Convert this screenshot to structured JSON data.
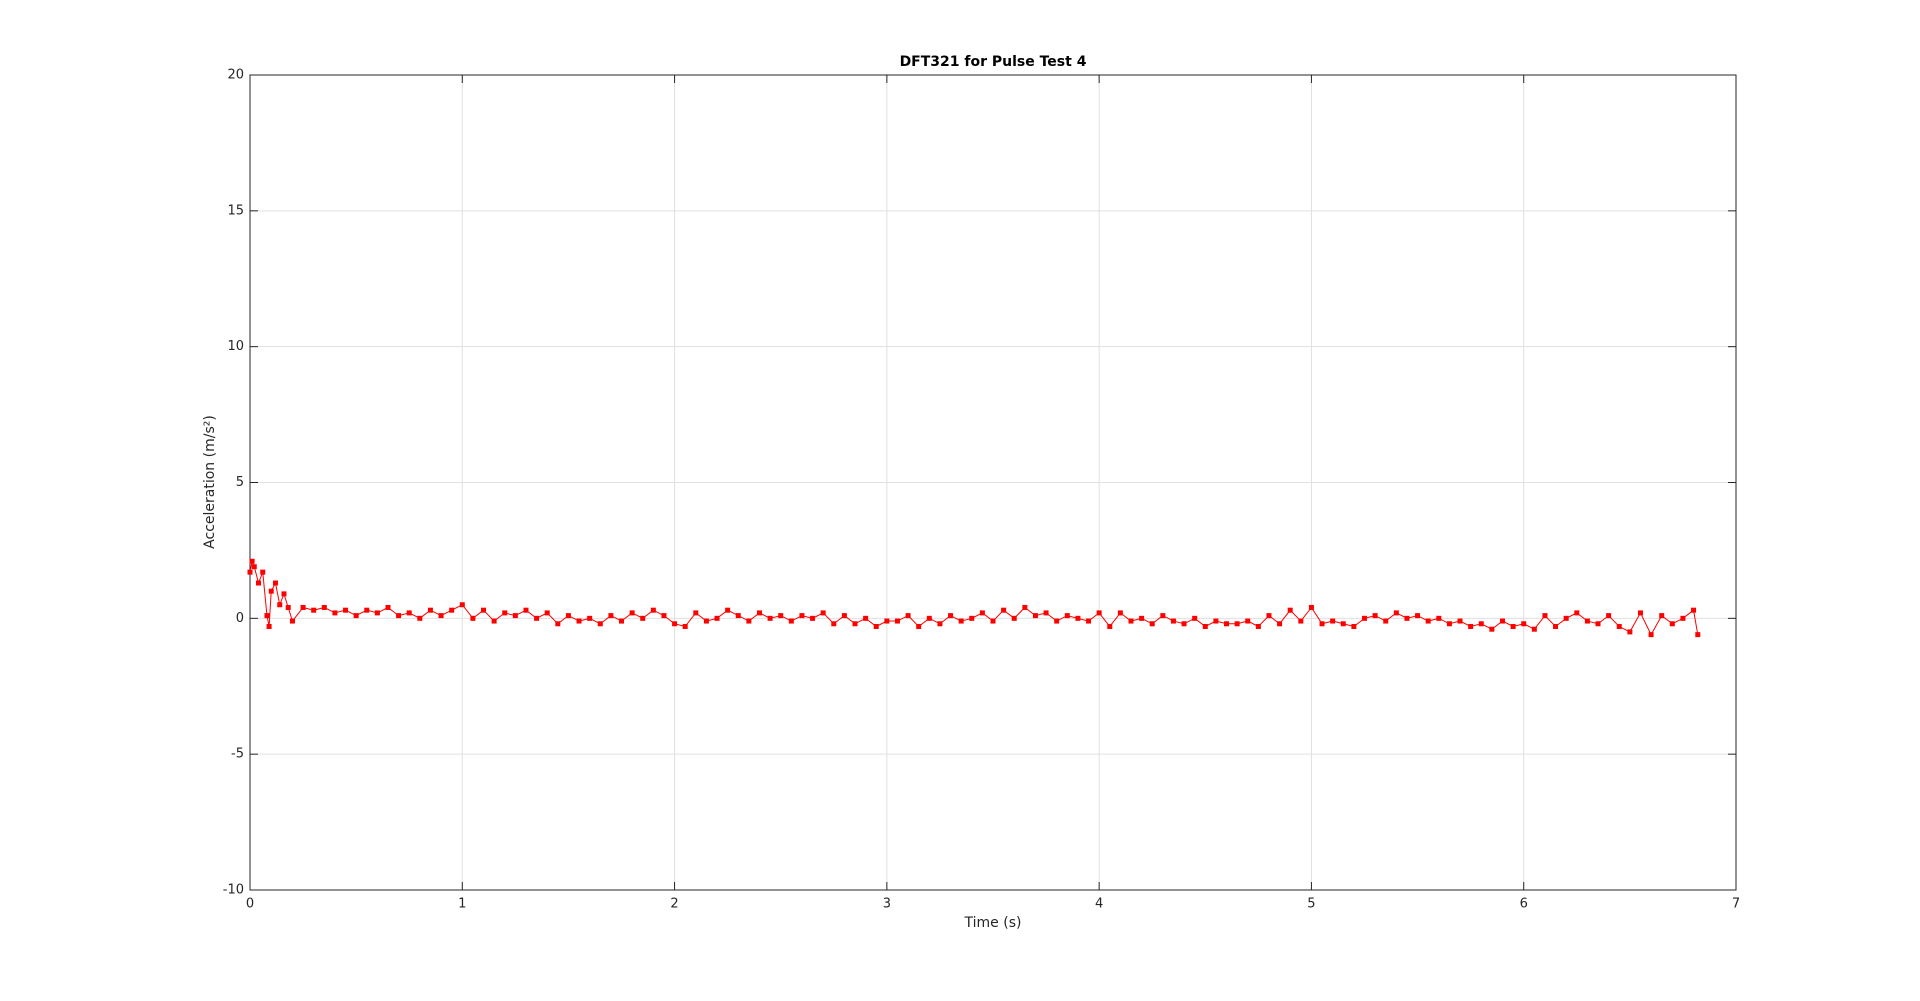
{
  "chart_data": {
    "type": "line",
    "title": "DFT321 for Pulse Test 4",
    "x_label": "Time (s)",
    "y_label": "Acceleration (m/s²)",
    "xlim": [
      0,
      7
    ],
    "ylim": [
      -10,
      20
    ],
    "xticks": [
      0,
      1,
      2,
      3,
      4,
      5,
      6,
      7
    ],
    "yticks": [
      -10,
      -5,
      0,
      5,
      10,
      15,
      20
    ],
    "grid": true,
    "x": [
      0,
      0.01,
      0.02,
      0.04,
      0.06,
      0.08,
      0.09,
      0.1,
      0.12,
      0.14,
      0.16,
      0.18,
      0.2,
      0.25,
      0.3,
      0.35,
      0.4,
      0.45,
      0.5,
      0.55,
      0.6,
      0.65,
      0.7,
      0.75,
      0.8,
      0.85,
      0.9,
      0.95,
      1.0,
      1.05,
      1.1,
      1.15,
      1.2,
      1.25,
      1.3,
      1.35,
      1.4,
      1.45,
      1.5,
      1.55,
      1.6,
      1.65,
      1.7,
      1.75,
      1.8,
      1.85,
      1.9,
      1.95,
      2.0,
      2.05,
      2.1,
      2.15,
      2.2,
      2.25,
      2.3,
      2.35,
      2.4,
      2.45,
      2.5,
      2.55,
      2.6,
      2.65,
      2.7,
      2.75,
      2.8,
      2.85,
      2.9,
      2.95,
      3.0,
      3.05,
      3.1,
      3.15,
      3.2,
      3.25,
      3.3,
      3.35,
      3.4,
      3.45,
      3.5,
      3.55,
      3.6,
      3.65,
      3.7,
      3.75,
      3.8,
      3.85,
      3.9,
      3.95,
      4.0,
      4.05,
      4.1,
      4.15,
      4.2,
      4.25,
      4.3,
      4.35,
      4.4,
      4.45,
      4.5,
      4.55,
      4.6,
      4.65,
      4.7,
      4.75,
      4.8,
      4.85,
      4.9,
      4.95,
      5.0,
      5.05,
      5.1,
      5.15,
      5.2,
      5.25,
      5.3,
      5.35,
      5.4,
      5.45,
      5.5,
      5.55,
      5.6,
      5.65,
      5.7,
      5.75,
      5.8,
      5.85,
      5.9,
      5.95,
      6.0,
      6.05,
      6.1,
      6.15,
      6.2,
      6.25,
      6.3,
      6.35,
      6.4,
      6.45,
      6.5,
      6.55,
      6.6,
      6.65,
      6.7,
      6.75,
      6.8,
      6.82
    ],
    "series": [
      {
        "color": "#ff0000",
        "values": [
          1.7,
          2.1,
          1.9,
          1.3,
          1.7,
          0.1,
          -0.3,
          1.0,
          1.3,
          0.5,
          0.9,
          0.4,
          -0.1,
          0.4,
          0.3,
          0.4,
          0.2,
          0.3,
          0.1,
          0.3,
          0.2,
          0.4,
          0.1,
          0.2,
          0.0,
          0.3,
          0.1,
          0.3,
          0.5,
          0.0,
          0.3,
          -0.1,
          0.2,
          0.1,
          0.3,
          0.0,
          0.2,
          -0.2,
          0.1,
          -0.1,
          0.0,
          -0.2,
          0.1,
          -0.1,
          0.2,
          0.0,
          0.3,
          0.1,
          -0.2,
          -0.3,
          0.2,
          -0.1,
          0.0,
          0.3,
          0.1,
          -0.1,
          0.2,
          0.0,
          0.1,
          -0.1,
          0.1,
          0.0,
          0.2,
          -0.2,
          0.1,
          -0.2,
          0.0,
          -0.3,
          -0.1,
          -0.1,
          0.1,
          -0.3,
          0.0,
          -0.2,
          0.1,
          -0.1,
          0.0,
          0.2,
          -0.1,
          0.3,
          0.0,
          0.4,
          0.1,
          0.2,
          -0.1,
          0.1,
          0.0,
          -0.1,
          0.2,
          -0.3,
          0.2,
          -0.1,
          0.0,
          -0.2,
          0.1,
          -0.1,
          -0.2,
          0.0,
          -0.3,
          -0.1,
          -0.2,
          -0.2,
          -0.1,
          -0.3,
          0.1,
          -0.2,
          0.3,
          -0.1,
          0.4,
          -0.2,
          -0.1,
          -0.2,
          -0.3,
          0.0,
          0.1,
          -0.1,
          0.2,
          0.0,
          0.1,
          -0.1,
          0.0,
          -0.2,
          -0.1,
          -0.3,
          -0.2,
          -0.4,
          -0.1,
          -0.3,
          -0.2,
          -0.4,
          0.1,
          -0.3,
          0.0,
          0.2,
          -0.1,
          -0.2,
          0.1,
          -0.3,
          -0.5,
          0.2,
          -0.6,
          0.1,
          -0.2,
          0.0,
          0.3,
          -0.6
        ]
      }
    ]
  }
}
